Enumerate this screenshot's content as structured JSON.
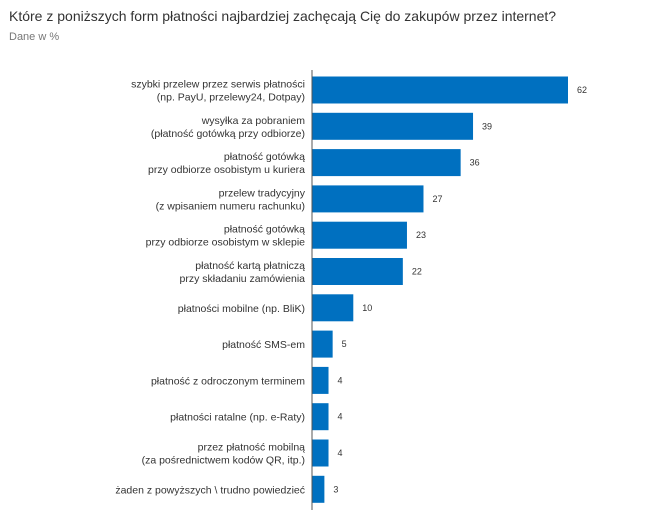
{
  "header": {
    "title": "Które z poniższych form płatności najbardziej zachęcają Cię do zakupów przez internet?",
    "subtitle": "Dane w %"
  },
  "colors": {
    "bar": "#0070c0",
    "axis": "#555555"
  },
  "chart_data": {
    "type": "bar",
    "orientation": "horizontal",
    "title": "Które z poniższych form płatności najbardziej zachęcają Cię do zakupów przez internet?",
    "subtitle": "Dane w %",
    "categories": [
      [
        "szybki przelew przez serwis płatności",
        "(np. PayU, przelewy24, Dotpay)"
      ],
      [
        "wysyłka za pobraniem",
        "(płatność gotówką przy odbiorze)"
      ],
      [
        "płatność gotówką",
        "przy odbiorze osobistym u kuriera"
      ],
      [
        "przelew tradycyjny",
        "(z wpisaniem numeru rachunku)"
      ],
      [
        "płatność gotówką",
        "przy odbiorze osobistym w sklepie"
      ],
      [
        "płatność kartą płatniczą",
        "przy składaniu zamówienia"
      ],
      [
        "płatności mobilne (np. BliK)"
      ],
      [
        "płatność SMS-em"
      ],
      [
        "płatność z odroczonym terminem"
      ],
      [
        "płatności ratalne (np. e-Raty)"
      ],
      [
        "przez płatność mobilną",
        "(za pośrednictwem kodów QR, itp.)"
      ],
      [
        "żaden z powyższych \\ trudno powiedzieć"
      ]
    ],
    "values": [
      62,
      39,
      36,
      27,
      23,
      22,
      10,
      5,
      4,
      4,
      4,
      3
    ],
    "data_labels": [
      "62",
      "39",
      "36",
      "27",
      "23",
      "22",
      "10",
      "5",
      "4",
      "4",
      "4",
      "3"
    ],
    "xlabel": "",
    "ylabel": "",
    "xlim": [
      0,
      62
    ],
    "grid": false,
    "legend": "none"
  }
}
